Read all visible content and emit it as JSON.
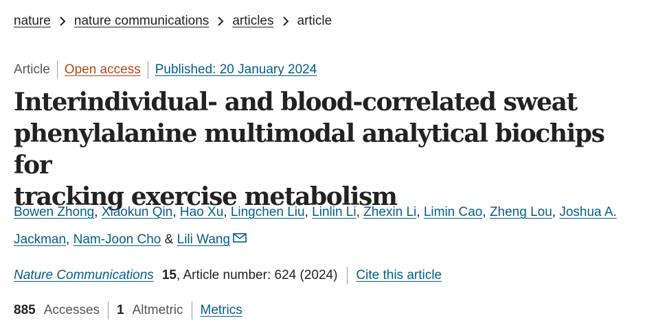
{
  "breadcrumb": {
    "items": [
      "nature",
      "nature communications",
      "articles"
    ],
    "current": "article"
  },
  "meta": {
    "type": "Article",
    "access": "Open access",
    "published": "Published: 20 January 2024"
  },
  "article": {
    "title_lines": [
      "Interindividual- and blood-correlated sweat",
      "phenylalanine multimodal analytical biochips for",
      "tracking exercise metabolism"
    ],
    "authors": [
      "Bowen Zhong",
      "Xiaokun Qin",
      "Hao Xu",
      "Lingchen Liu",
      "Linlin Li",
      "Zhexin Li",
      "Limin Cao",
      "Zheng Lou",
      "Joshua A. Jackman",
      "Nam-Joon Cho",
      "Lili Wang"
    ],
    "author_separator": ",",
    "author_and": "&",
    "mail_icon": "envelope-icon"
  },
  "citation": {
    "journal": "Nature Communications",
    "volume": "15",
    "article_number": ", Article number: 624 (2024)",
    "cite_link": "Cite this article"
  },
  "metrics": {
    "accesses_count": "885",
    "accesses_label": "Accesses",
    "altmetric_count": "1",
    "altmetric_label": "Altmetric",
    "metrics_link": "Metrics"
  },
  "colors": {
    "link": "#025e8d",
    "open_access": "#b74616",
    "text": "#222222",
    "muted": "#555555"
  }
}
